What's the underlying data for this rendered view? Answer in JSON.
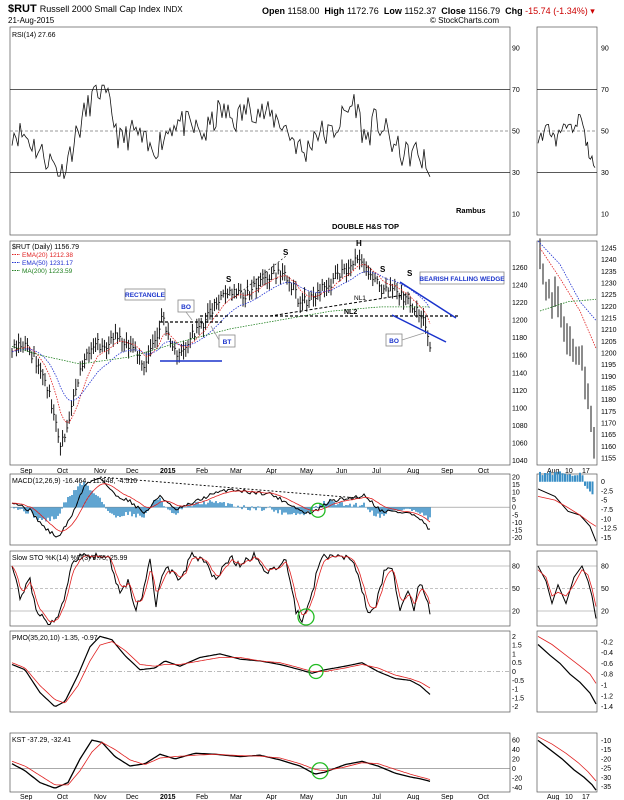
{
  "header": {
    "symbol": "$RUT",
    "name": "Russell 2000 Small Cap Index",
    "exchange": "INDX",
    "date": "21-Aug-2015",
    "open_label": "Open",
    "open": "1158.00",
    "high_label": "High",
    "high": "1172.76",
    "low_label": "Low",
    "low": "1152.37",
    "close_label": "Close",
    "close": "1156.79",
    "chg_label": "Chg",
    "chg": "-15.74 (-1.34%)",
    "watermark": "© StockCharts.com"
  },
  "colors": {
    "price": "#000000",
    "ema20": "#e02020",
    "ema50": "#2030d0",
    "ma200": "#208020",
    "annotation_blue": "#1a33cc",
    "circle_green": "#22bb22",
    "histogram": "#3a8fc6",
    "ref_line": "#999999"
  },
  "axes": {
    "main_months": [
      "Sep",
      "Oct",
      "Nov",
      "Dec",
      "2015",
      "Feb",
      "Mar",
      "Apr",
      "May",
      "Jun",
      "Jul",
      "Aug",
      "Sep",
      "Oct"
    ],
    "side_months": [
      "Aug",
      "10",
      "17"
    ]
  },
  "panels": {
    "rsi": {
      "label": "RSI(14) 27.66",
      "ticks": [
        90,
        70,
        50,
        30,
        10
      ],
      "side_ticks": [
        90,
        70,
        50,
        30,
        10
      ],
      "ylim": [
        0,
        100
      ]
    },
    "price": {
      "label": "$RUT (Daily) 1156.79",
      "legend": [
        {
          "text": "EMA(20) 1212.38",
          "key": "ema20"
        },
        {
          "text": "EMA(50) 1231.17",
          "key": "ema50"
        },
        {
          "text": "MA(200) 1223.59",
          "key": "ma200"
        }
      ],
      "ticks": [
        1260,
        1240,
        1220,
        1200,
        1180,
        1160,
        1140,
        1120,
        1100,
        1080,
        1060,
        1040
      ],
      "side_ticks": [
        1245,
        1240,
        1235,
        1230,
        1225,
        1220,
        1215,
        1210,
        1205,
        1200,
        1195,
        1190,
        1185,
        1180,
        1175,
        1170,
        1165,
        1160,
        1155
      ],
      "ylim": [
        1035,
        1290
      ],
      "side_ylim": [
        1152,
        1248
      ]
    },
    "macd": {
      "label": "MACD(12,26,9) -16.464, -11.948, -4.516",
      "ticks": [
        20,
        15,
        10,
        5,
        0,
        -5,
        -10,
        -15,
        -20
      ],
      "side_ticks": [
        0.0,
        -2.5,
        -5.0,
        -7.5,
        -10.0,
        -12.5,
        -15.0
      ],
      "ylim": [
        -25,
        22
      ]
    },
    "sto": {
      "label": "Slow STO %K(14) %D(3) 9.75, 25.99",
      "ticks": [
        80,
        50,
        20
      ],
      "side_ticks": [
        80,
        50,
        20
      ],
      "ylim": [
        0,
        100
      ]
    },
    "pmo": {
      "label": "PMO(35,20,10) -1.35, -0.97",
      "ticks": [
        2.0,
        1.5,
        1.0,
        0.5,
        0.0,
        -0.5,
        -1.0,
        -1.5,
        -2.0
      ],
      "side_ticks": [
        -0.2,
        -0.4,
        -0.6,
        -0.8,
        -1.0,
        -1.2,
        -1.4
      ],
      "ylim": [
        -2.3,
        2.3
      ]
    },
    "kst": {
      "label": "KST -37.29, -32.41",
      "ticks": [
        60,
        40,
        20,
        0,
        -20,
        -40
      ],
      "side_ticks": [
        -10,
        -15,
        -20,
        -25,
        -30,
        -35
      ],
      "ylim": [
        -50,
        75
      ]
    }
  },
  "annotations": {
    "rambus": "Rambus",
    "double_hs_top": "DOUBLE H&S TOP",
    "rectangle": "RECTANGLE",
    "bearish_falling_wedge": "BEARISH FALLING WEDGE",
    "nl1": "NL1",
    "nl2": "NL2",
    "bo1": "BO",
    "bt": "BT",
    "bo2": "BO",
    "s1": "S",
    "s2": "S",
    "h": "H",
    "s3": "S",
    "s4": "S"
  },
  "chart_data": {
    "type": "line",
    "title": "$RUT Russell 2000 Small Cap Index INDX",
    "x_range": [
      "2014-09",
      "2015-10"
    ],
    "series": [
      {
        "name": "$RUT (Daily)",
        "x": [
          "2014-09-01",
          "2014-09-15",
          "2014-10-01",
          "2014-10-13",
          "2014-10-22",
          "2014-11-01",
          "2014-11-15",
          "2014-12-01",
          "2014-12-15",
          "2015-01-01",
          "2015-01-15",
          "2015-02-01",
          "2015-02-15",
          "2015-03-01",
          "2015-03-15",
          "2015-04-01",
          "2015-04-15",
          "2015-05-01",
          "2015-05-15",
          "2015-06-01",
          "2015-06-15",
          "2015-06-23",
          "2015-07-01",
          "2015-07-10",
          "2015-07-20",
          "2015-08-01",
          "2015-08-10",
          "2015-08-21"
        ],
        "values": [
          1175,
          1160,
          1110,
          1050,
          1090,
          1160,
          1175,
          1160,
          1180,
          1205,
          1170,
          1185,
          1215,
          1230,
          1235,
          1250,
          1260,
          1220,
          1235,
          1250,
          1260,
          1280,
          1245,
          1235,
          1245,
          1220,
          1200,
          1156.79
        ]
      },
      {
        "name": "EMA(20)",
        "value": 1212.38
      },
      {
        "name": "EMA(50)",
        "value": 1231.17
      },
      {
        "name": "MA(200)",
        "value": 1223.59
      },
      {
        "name": "RSI(14)",
        "value": 27.66
      },
      {
        "name": "MACD(12,26,9)",
        "values_last": [
          -16.464,
          -11.948,
          -4.516
        ]
      },
      {
        "name": "Slow STO %K(14) %D(3)",
        "values_last": [
          9.75,
          25.99
        ]
      },
      {
        "name": "PMO(35,20,10)",
        "values_last": [
          -1.35,
          -0.97
        ]
      },
      {
        "name": "KST",
        "values_last": [
          -37.29,
          -32.41
        ]
      }
    ],
    "grid": false,
    "legend": "top-left"
  }
}
